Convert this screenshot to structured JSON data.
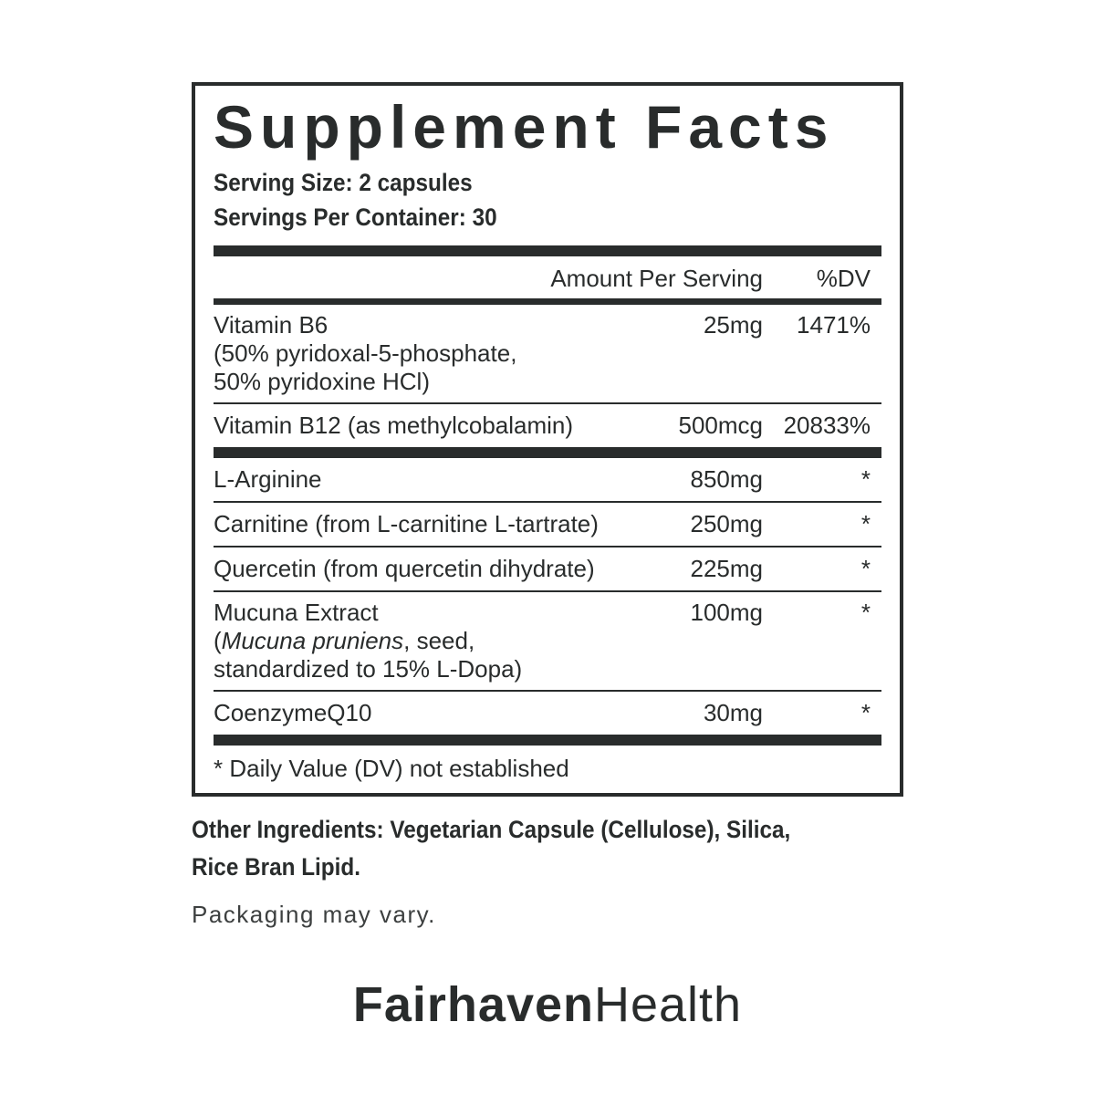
{
  "colors": {
    "ink": "#292c2c",
    "muted": "#3d4040",
    "background": "#ffffff"
  },
  "panel": {
    "title": "Supplement Facts",
    "serving_size": "Serving Size: 2 capsules",
    "servings_per_container": "Servings Per Container: 30",
    "columns": {
      "amount": "Amount Per Serving",
      "dv": "%DV"
    },
    "rows": [
      {
        "name": "Vitamin B6",
        "sub_lines": [
          [
            {
              "text": "(50% pyridoxal-5-phosphate,",
              "italic": false
            }
          ],
          [
            {
              "text": "50% pyridoxine HCl)",
              "italic": false
            }
          ]
        ],
        "amount": "25mg",
        "dv": "1471%",
        "separator_after": "thin"
      },
      {
        "name": "Vitamin B12 (as methylcobalamin)",
        "sub_lines": [],
        "amount": "500mcg",
        "dv": "20833%",
        "separator_after": "thick"
      },
      {
        "name": "L-Arginine",
        "sub_lines": [],
        "amount": "850mg",
        "dv": "*",
        "separator_after": "thin"
      },
      {
        "name": "Carnitine (from L-carnitine L-tartrate)",
        "sub_lines": [],
        "amount": "250mg",
        "dv": "*",
        "separator_after": "thin"
      },
      {
        "name": "Quercetin (from quercetin dihydrate)",
        "sub_lines": [],
        "amount": "225mg",
        "dv": "*",
        "separator_after": "thin"
      },
      {
        "name": "Mucuna Extract",
        "sub_lines": [
          [
            {
              "text": "(",
              "italic": false
            },
            {
              "text": "Mucuna pruniens",
              "italic": true
            },
            {
              "text": ", seed,",
              "italic": false
            }
          ],
          [
            {
              "text": "standardized to 15% L-Dopa)",
              "italic": false
            }
          ]
        ],
        "amount": "100mg",
        "dv": "*",
        "separator_after": "thin"
      },
      {
        "name": "CoenzymeQ10",
        "sub_lines": [],
        "amount": "30mg",
        "dv": "*",
        "separator_after": "thick"
      }
    ],
    "footnote": "* Daily Value (DV) not established"
  },
  "below_panel": {
    "other_ingredients_lines": [
      "Other Ingredients: Vegetarian Capsule (Cellulose), Silica,",
      "Rice Bran Lipid."
    ],
    "packaging_note": "Packaging may vary.",
    "logo": {
      "bold_part": "Fairhaven",
      "light_part": "Health"
    }
  }
}
